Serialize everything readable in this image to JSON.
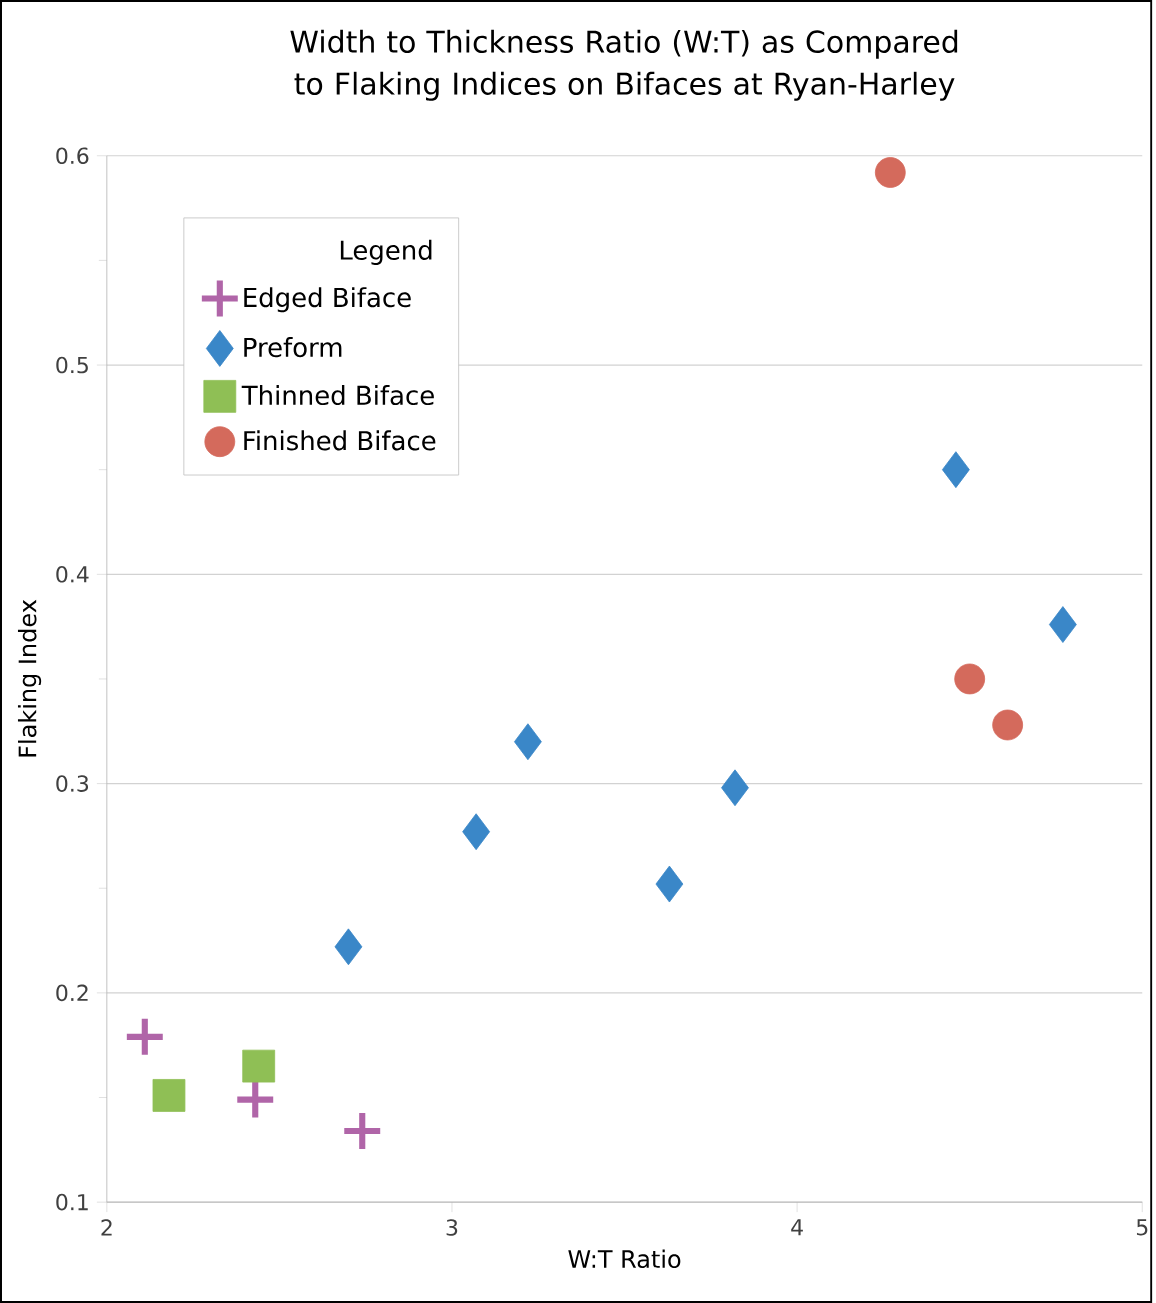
{
  "chart_data": {
    "type": "scatter",
    "title": "Width to Thickness Ratio (W:T) as Compared to Flaking Indices on Bifaces at Ryan-Harley",
    "xlabel": "W:T Ratio",
    "ylabel": "Flaking Index",
    "legend_title": "Legend",
    "xlim": [
      2,
      5
    ],
    "xticks": [
      2,
      3,
      4,
      5
    ],
    "ylim": [
      0.1,
      0.6
    ],
    "yticks": [
      0.1,
      {
        "value": 0.15,
        "label": null
      },
      0.2,
      {
        "value": 0.25,
        "label": null
      },
      0.3,
      {
        "value": 0.35,
        "label": null
      },
      0.4,
      {
        "value": 0.45,
        "label": null
      },
      0.5,
      {
        "value": 0.55,
        "label": null
      },
      0.6
    ],
    "grid": "y",
    "legend": "top left",
    "series": [
      {
        "name": "Edged Biface",
        "color": "#b065a8",
        "marker": "cross",
        "x": [
          2.11,
          2.43,
          2.74
        ],
        "values": [
          0.179,
          0.149,
          0.134
        ]
      },
      {
        "name": "Preform",
        "color": "#3a87c8",
        "marker": "diamond",
        "x": [
          2.7,
          3.07,
          3.22,
          3.63,
          3.82,
          4.46,
          4.77
        ],
        "values": [
          0.222,
          0.277,
          0.32,
          0.252,
          0.298,
          0.45,
          0.376
        ]
      },
      {
        "name": "Thinned Biface",
        "color": "#8fbf55",
        "marker": "square",
        "x": [
          2.18,
          2.44
        ],
        "values": [
          0.151,
          0.165
        ]
      },
      {
        "name": "Finished Biface",
        "color": "#d46a5c",
        "marker": "circle",
        "x": [
          4.27,
          4.5,
          4.61
        ],
        "values": [
          0.592,
          0.35,
          0.328
        ]
      }
    ]
  }
}
